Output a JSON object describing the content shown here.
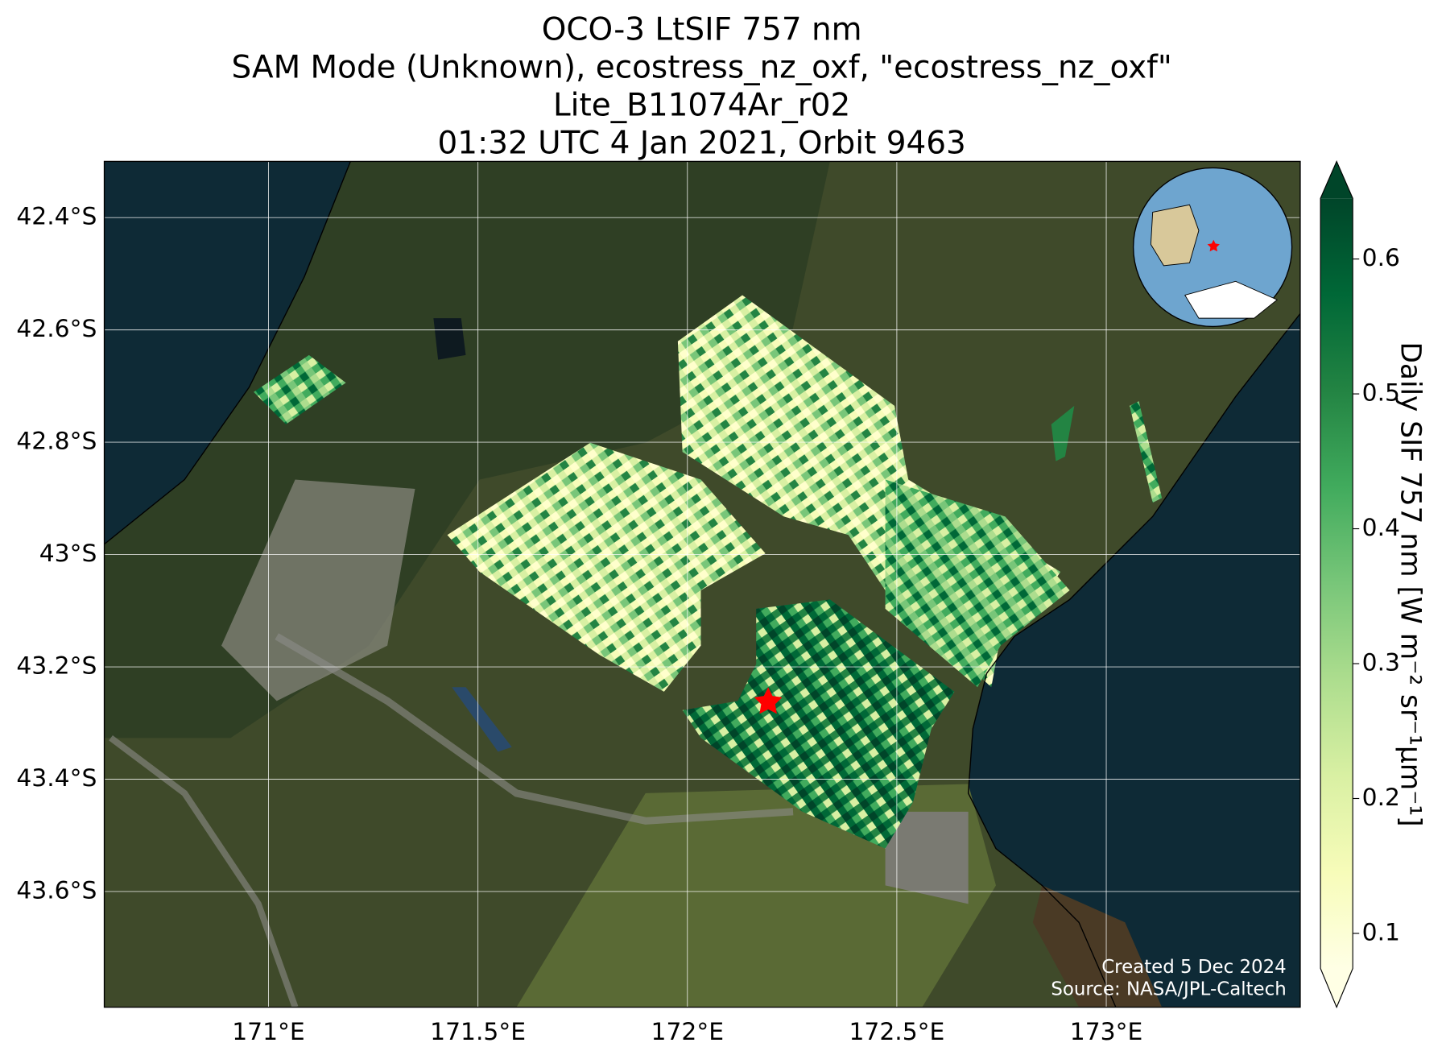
{
  "map": {
    "title": [
      "OCO-3 LtSIF 757 nm",
      "SAM Mode (Unknown), ecostress_nz_oxf, \"ecostress_nz_oxf\"",
      "Lite_B11074Ar_r02",
      "01:32 UTC 4 Jan 2021, Orbit 9463"
    ],
    "xlim": [
      170.608,
      173.463
    ],
    "ylim": [
      -43.806,
      -42.3
    ],
    "xticks": [
      {
        "value": 171,
        "label": "171°E"
      },
      {
        "value": 171.5,
        "label": "171.5°E"
      },
      {
        "value": 172,
        "label": "172°E"
      },
      {
        "value": 172.5,
        "label": "172.5°E"
      },
      {
        "value": 173,
        "label": "173°E"
      }
    ],
    "yticks": [
      {
        "value": -42.4,
        "label": "42.4°S"
      },
      {
        "value": -42.6,
        "label": "42.6°S"
      },
      {
        "value": -42.8,
        "label": "42.8°S"
      },
      {
        "value": -43,
        "label": "43°S"
      },
      {
        "value": -43.2,
        "label": "43.2°S"
      },
      {
        "value": -43.4,
        "label": "43.4°S"
      },
      {
        "value": -43.6,
        "label": "43.6°S"
      }
    ],
    "grid": true,
    "colorbar": {
      "label": "Daily SIF 757 nm [W m⁻² sr⁻¹μm⁻¹]",
      "clim": [
        0.074,
        0.645
      ],
      "ticks": [
        0.1,
        0.2,
        0.3,
        0.4,
        0.5,
        0.6
      ],
      "colormap": [
        "#ffffe5",
        "#f7fcb9",
        "#d9f0a3",
        "#addd8e",
        "#78c679",
        "#41ab5d",
        "#238443",
        "#006837",
        "#004529"
      ]
    },
    "credits": [
      "Created 5 Dec 2024",
      "Source: NASA/JPL-Caltech"
    ]
  }
}
